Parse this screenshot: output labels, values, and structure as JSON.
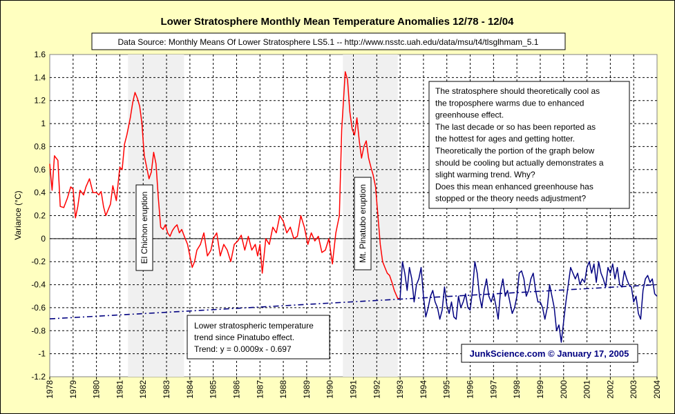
{
  "chart_data": {
    "type": "line",
    "title": "Lower Stratosphere Monthly Mean Temperature Anomalies 12/78 - 12/04",
    "subtitle": "Data Source: Monthly Means Of Lower Stratosphere LS5.1 -- http://www.nsstc.uah.edu/data/msu/t4/tlsglhmam_5.1",
    "ylabel": "Variance (°C)",
    "xlabel": "",
    "ylim": [
      -1.2,
      1.6
    ],
    "yticks": [
      -1.2,
      -1,
      -0.8,
      -0.6,
      -0.4,
      -0.2,
      0,
      0.2,
      0.4,
      0.6,
      0.8,
      1,
      1.2,
      1.4,
      1.6
    ],
    "ytick_labels": [
      "-1.2",
      "-1",
      "-0.8",
      "-0.6",
      "-0.4",
      "-0.2",
      "0",
      "0.2",
      "0.4",
      "0.6",
      "0.8",
      "1",
      "1.2",
      "1.4",
      "1.6"
    ],
    "xlim": [
      1978,
      2004
    ],
    "xtick_labels": [
      "1978",
      "1979",
      "1980",
      "1981",
      "1982",
      "1983",
      "1984",
      "1985",
      "1986",
      "1987",
      "1988",
      "1989",
      "1990",
      "1991",
      "1992",
      "1993",
      "1994",
      "1995",
      "1996",
      "1997",
      "1998",
      "1999",
      "2000",
      "2001",
      "2002",
      "2003",
      "2004"
    ],
    "grid": true,
    "shaded_periods": [
      {
        "label": "El Chichon eruption",
        "start": 1981.35,
        "end": 1983.75
      },
      {
        "label": "Mt. Pinatubo eruption",
        "start": 1990.55,
        "end": 1992.9
      }
    ],
    "series": [
      {
        "color": "#ff0000",
        "x": [
          1978.0,
          1978.1,
          1978.2,
          1978.35,
          1978.45,
          1978.6,
          1978.75,
          1978.9,
          1979.0,
          1979.1,
          1979.2,
          1979.3,
          1979.45,
          1979.55,
          1979.7,
          1979.85,
          1980.0,
          1980.1,
          1980.2,
          1980.3,
          1980.4,
          1980.5,
          1980.6,
          1980.7,
          1980.85,
          1981.0,
          1981.1,
          1981.2,
          1981.3,
          1981.45,
          1981.55,
          1981.65,
          1981.75,
          1981.85,
          1981.95,
          1982.0,
          1982.05,
          1982.15,
          1982.25,
          1982.35,
          1982.45,
          1982.55,
          1982.65,
          1982.75,
          1982.85,
          1982.95,
          1983.05,
          1983.15,
          1983.25,
          1983.35,
          1983.45,
          1983.55,
          1983.65,
          1983.8,
          1983.9,
          1984.0,
          1984.1,
          1984.2,
          1984.3,
          1984.45,
          1984.6,
          1984.75,
          1984.9,
          1985.0,
          1985.15,
          1985.3,
          1985.45,
          1985.6,
          1985.75,
          1985.9,
          1986.05,
          1986.2,
          1986.35,
          1986.5,
          1986.65,
          1986.8,
          1986.9,
          1987.0,
          1987.1,
          1987.25,
          1987.4,
          1987.55,
          1987.7,
          1987.85,
          1988.0,
          1988.15,
          1988.3,
          1988.45,
          1988.6,
          1988.75,
          1988.9,
          1989.05,
          1989.2,
          1989.35,
          1989.5,
          1989.65,
          1989.8,
          1989.95,
          1990.1,
          1990.25,
          1990.4,
          1990.5,
          1990.65,
          1990.75,
          1990.85,
          1990.95,
          1991.05,
          1991.15,
          1991.25,
          1991.35,
          1991.45,
          1991.55,
          1991.65,
          1991.75,
          1991.85,
          1991.95,
          1992.05,
          1992.15,
          1992.25,
          1992.35,
          1992.45,
          1992.55,
          1992.65,
          1992.75,
          1992.9,
          1993.0
        ],
        "y": [
          0.65,
          0.42,
          0.72,
          0.68,
          0.28,
          0.27,
          0.35,
          0.45,
          0.43,
          0.18,
          0.28,
          0.42,
          0.38,
          0.45,
          0.52,
          0.4,
          0.4,
          0.38,
          0.41,
          0.28,
          0.2,
          0.25,
          0.3,
          0.46,
          0.33,
          0.62,
          0.6,
          0.82,
          0.9,
          1.05,
          1.18,
          1.27,
          1.22,
          1.15,
          1.0,
          0.85,
          0.72,
          0.62,
          0.52,
          0.58,
          0.75,
          0.65,
          0.35,
          0.1,
          0.08,
          0.12,
          0.05,
          0.02,
          0.07,
          0.1,
          0.12,
          0.05,
          0.08,
          0.0,
          -0.05,
          -0.15,
          -0.25,
          -0.2,
          -0.1,
          -0.05,
          0.05,
          -0.15,
          -0.1,
          0.0,
          0.05,
          -0.15,
          -0.05,
          -0.1,
          -0.2,
          -0.05,
          -0.02,
          0.03,
          -0.1,
          0.02,
          -0.1,
          -0.05,
          -0.15,
          -0.05,
          -0.3,
          0.0,
          -0.05,
          0.1,
          0.05,
          0.2,
          0.15,
          0.05,
          0.1,
          0.0,
          0.02,
          0.2,
          0.1,
          -0.05,
          0.05,
          -0.02,
          0.02,
          -0.12,
          -0.1,
          0.0,
          -0.22,
          0.05,
          0.2,
          0.95,
          1.45,
          1.38,
          1.1,
          0.95,
          0.9,
          1.05,
          0.85,
          0.7,
          0.8,
          0.85,
          0.7,
          0.62,
          0.55,
          0.45,
          0.2,
          -0.05,
          -0.2,
          -0.25,
          -0.3,
          -0.32,
          -0.38,
          -0.45,
          -0.52,
          -0.52
        ]
      },
      {
        "color": "#000080",
        "x": [
          1993.0,
          1993.1,
          1993.2,
          1993.3,
          1993.4,
          1993.5,
          1993.6,
          1993.7,
          1993.8,
          1993.9,
          1994.0,
          1994.1,
          1994.2,
          1994.3,
          1994.4,
          1994.5,
          1994.6,
          1994.7,
          1994.8,
          1994.9,
          1995.0,
          1995.1,
          1995.2,
          1995.3,
          1995.4,
          1995.5,
          1995.6,
          1995.7,
          1995.8,
          1995.9,
          1996.0,
          1996.1,
          1996.2,
          1996.3,
          1996.4,
          1996.5,
          1996.6,
          1996.7,
          1996.8,
          1996.9,
          1997.0,
          1997.1,
          1997.2,
          1997.3,
          1997.4,
          1997.5,
          1997.6,
          1997.7,
          1997.8,
          1997.9,
          1998.0,
          1998.1,
          1998.2,
          1998.3,
          1998.4,
          1998.5,
          1998.6,
          1998.7,
          1998.8,
          1998.9,
          1999.0,
          1999.1,
          1999.2,
          1999.3,
          1999.4,
          1999.5,
          1999.6,
          1999.7,
          1999.8,
          1999.9,
          2000.0,
          2000.1,
          2000.2,
          2000.3,
          2000.4,
          2000.5,
          2000.6,
          2000.7,
          2000.8,
          2000.9,
          2001.0,
          2001.1,
          2001.2,
          2001.3,
          2001.4,
          2001.5,
          2001.6,
          2001.7,
          2001.8,
          2001.9,
          2002.0,
          2002.1,
          2002.2,
          2002.3,
          2002.4,
          2002.5,
          2002.6,
          2002.7,
          2002.8,
          2002.9,
          2003.0,
          2003.1,
          2003.2,
          2003.3,
          2003.4,
          2003.5,
          2003.6,
          2003.7,
          2003.8,
          2003.9,
          2004.0
        ],
        "y": [
          -0.52,
          -0.2,
          -0.3,
          -0.45,
          -0.25,
          -0.35,
          -0.55,
          -0.4,
          -0.35,
          -0.25,
          -0.5,
          -0.68,
          -0.6,
          -0.5,
          -0.45,
          -0.55,
          -0.6,
          -0.7,
          -0.62,
          -0.42,
          -0.58,
          -0.65,
          -0.55,
          -0.68,
          -0.7,
          -0.5,
          -0.6,
          -0.55,
          -0.48,
          -0.6,
          -0.62,
          -0.45,
          -0.2,
          -0.3,
          -0.5,
          -0.6,
          -0.45,
          -0.35,
          -0.5,
          -0.55,
          -0.48,
          -0.58,
          -0.7,
          -0.45,
          -0.35,
          -0.5,
          -0.45,
          -0.55,
          -0.65,
          -0.6,
          -0.5,
          -0.3,
          -0.28,
          -0.35,
          -0.5,
          -0.45,
          -0.35,
          -0.3,
          -0.45,
          -0.55,
          -0.55,
          -0.6,
          -0.7,
          -0.6,
          -0.4,
          -0.5,
          -0.6,
          -0.8,
          -0.75,
          -0.9,
          -0.72,
          -0.55,
          -0.4,
          -0.25,
          -0.3,
          -0.35,
          -0.3,
          -0.4,
          -0.35,
          -0.38,
          -0.25,
          -0.2,
          -0.3,
          -0.22,
          -0.38,
          -0.2,
          -0.3,
          -0.35,
          -0.42,
          -0.25,
          -0.3,
          -0.22,
          -0.35,
          -0.25,
          -0.4,
          -0.42,
          -0.28,
          -0.35,
          -0.4,
          -0.42,
          -0.55,
          -0.5,
          -0.65,
          -0.7,
          -0.45,
          -0.35,
          -0.32,
          -0.38,
          -0.35,
          -0.48,
          -0.5
        ]
      },
      {
        "name": "trend",
        "color": "#000080",
        "dashed": true,
        "x": [
          1978,
          2004
        ],
        "y": [
          -0.697,
          -0.4
        ]
      }
    ]
  },
  "annotations": {
    "stratosphere_note": [
      "The stratosphere should theoretically cool as",
      "the troposphere warms due to enhanced",
      "greenhouse effect.",
      "The last decade or so has been reported as",
      "the hottest for ages and getting hotter.",
      "Theoretically the portion of the graph below",
      "should be cooling but actually demonstrates a",
      "slight warming trend. Why?",
      "Does this mean enhanced greenhouse has",
      "stopped or the theory needs adjustment?"
    ],
    "trend_note": [
      "Lower stratospheric temperature",
      "trend since Pinatubo effect.",
      "Trend: y = 0.0009x - 0.697"
    ],
    "credit": "JunkScience.com © January 17, 2005"
  },
  "colors": {
    "background": "#ffffc0",
    "plot_area": "#ffffff",
    "shade": "#f0f0f0",
    "red_series": "#ff0000",
    "blue_series": "#000080",
    "credit_text": "#000080"
  }
}
